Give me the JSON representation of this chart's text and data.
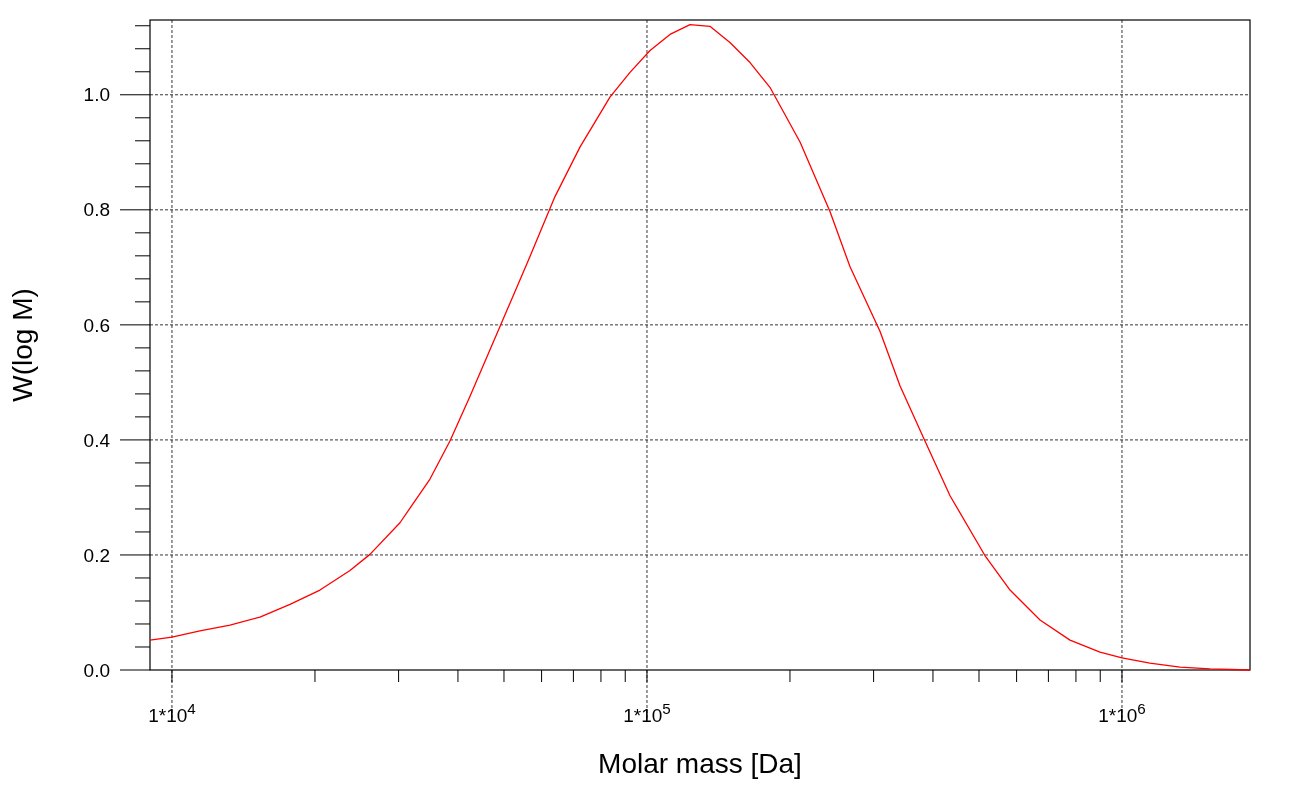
{
  "chart_data": {
    "type": "line",
    "xlabel": "Molar mass [Da]",
    "ylabel": "W(log M)",
    "log": "x",
    "grid": true,
    "line_style": "solid",
    "marker": "none",
    "xlim": [
      8990,
      1860000
    ],
    "ylim": [
      0,
      1.13
    ],
    "xticks": [
      {
        "value": 10000,
        "label": "1*10$^{4}$"
      },
      {
        "value": 20000,
        "label": null
      },
      {
        "value": 30000,
        "label": null
      },
      {
        "value": 40000,
        "label": null
      },
      {
        "value": 50000,
        "label": null
      },
      {
        "value": 60000,
        "label": null
      },
      {
        "value": 70000,
        "label": null
      },
      {
        "value": 80000,
        "label": null
      },
      {
        "value": 90000,
        "label": null
      },
      {
        "value": 100000,
        "label": "1*10$^{5}$"
      },
      {
        "value": 200000,
        "label": null
      },
      {
        "value": 300000,
        "label": null
      },
      {
        "value": 400000,
        "label": null
      },
      {
        "value": 500000,
        "label": null
      },
      {
        "value": 600000,
        "label": null
      },
      {
        "value": 700000,
        "label": null
      },
      {
        "value": 800000,
        "label": null
      },
      {
        "value": 900000,
        "label": null
      },
      {
        "value": 1000000,
        "label": "1*10$^{6}$"
      }
    ],
    "yticks": [
      {
        "value": 0,
        "label": "0.0"
      },
      {
        "value": 0.04,
        "label": null
      },
      {
        "value": 0.08,
        "label": null
      },
      {
        "value": 0.12,
        "label": null
      },
      {
        "value": 0.16,
        "label": null
      },
      {
        "value": 0.2,
        "label": "0.2"
      },
      {
        "value": 0.24,
        "label": null
      },
      {
        "value": 0.28,
        "label": null
      },
      {
        "value": 0.32,
        "label": null
      },
      {
        "value": 0.36,
        "label": null
      },
      {
        "value": 0.4,
        "label": "0.4"
      },
      {
        "value": 0.44,
        "label": null
      },
      {
        "value": 0.48,
        "label": null
      },
      {
        "value": 0.52,
        "label": null
      },
      {
        "value": 0.56,
        "label": null
      },
      {
        "value": 0.6,
        "label": "0.6"
      },
      {
        "value": 0.64,
        "label": null
      },
      {
        "value": 0.68,
        "label": null
      },
      {
        "value": 0.72,
        "label": null
      },
      {
        "value": 0.76,
        "label": null
      },
      {
        "value": 0.8,
        "label": "0.8"
      },
      {
        "value": 0.84,
        "label": null
      },
      {
        "value": 0.88,
        "label": null
      },
      {
        "value": 0.92,
        "label": null
      },
      {
        "value": 0.96,
        "label": null
      },
      {
        "value": 1.0,
        "label": "1.0"
      },
      {
        "value": 1.04,
        "label": null
      },
      {
        "value": 1.08,
        "label": null
      },
      {
        "value": 1.12,
        "label": null
      }
    ],
    "series": [
      {
        "color": "#ff0000",
        "x": [
          8990,
          10000,
          11450,
          13250,
          15320,
          17720,
          20490,
          23700,
          26110,
          30200,
          34930,
          38480,
          42410,
          49040,
          56720,
          64020,
          72260,
          83570,
          92100,
          101500,
          111800,
          123200,
          135700,
          149500,
          164800,
          181500,
          210000,
          242800,
          267600,
          309400,
          340900,
          384800,
          434500,
          514600,
          581200,
          672100,
          777300,
          898800,
          1000000,
          1145000,
          1325000,
          1532000,
          1860000
        ],
        "values": [
          0.052,
          0.057,
          0.068,
          0.078,
          0.092,
          0.114,
          0.139,
          0.173,
          0.201,
          0.256,
          0.332,
          0.398,
          0.476,
          0.597,
          0.719,
          0.823,
          0.909,
          0.996,
          1.039,
          1.077,
          1.105,
          1.122,
          1.119,
          1.091,
          1.056,
          1.013,
          0.918,
          0.797,
          0.701,
          0.589,
          0.494,
          0.398,
          0.303,
          0.199,
          0.139,
          0.087,
          0.052,
          0.031,
          0.021,
          0.012,
          0.005,
          0.002,
          0.0
        ]
      }
    ]
  }
}
